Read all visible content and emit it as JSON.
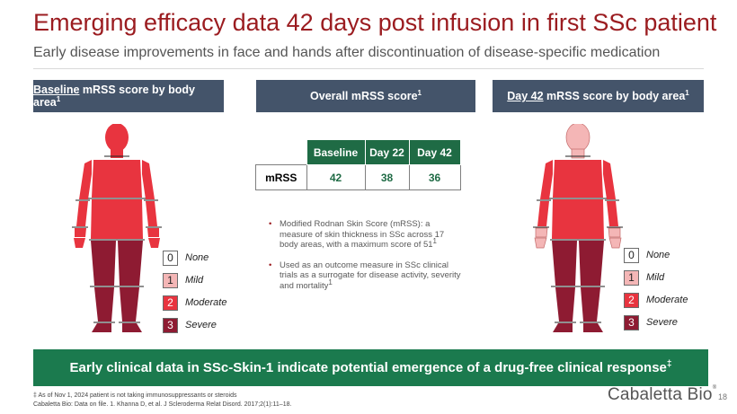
{
  "title": "Emerging efficacy data 42 days post infusion in first SSc patient",
  "subtitle": "Early disease improvements in face and hands after discontinuation of disease-specific medication",
  "headers": {
    "left_underlined": "Baseline",
    "left_rest": " mRSS score by body area",
    "left_sup": "1",
    "center": "Overall mRSS score",
    "center_sup": "1",
    "right_underlined": "Day 42",
    "right_rest": " mRSS score by body area",
    "right_sup": "1"
  },
  "legend": [
    {
      "num": "0",
      "label": "None",
      "color": "#ffffff"
    },
    {
      "num": "1",
      "label": "Mild",
      "color": "#f4b6b6"
    },
    {
      "num": "2",
      "label": "Moderate",
      "color": "#e8343f"
    },
    {
      "num": "3",
      "label": "Severe",
      "color": "#8e1b32"
    }
  ],
  "score_table": {
    "columns": [
      "Baseline",
      "Day 22",
      "Day 42"
    ],
    "row_label": "mRSS",
    "values": [
      "42",
      "38",
      "36"
    ]
  },
  "bullets": [
    {
      "text": "Modified Rodnan Skin Score (mRSS): a measure of skin thickness in SSc across 17 body areas, with a maximum score of 51",
      "sup": "1"
    },
    {
      "text": "Used as an outcome measure in SSc clinical trials as a surrogate for disease activity, severity and mortality",
      "sup": "1"
    }
  ],
  "banner": {
    "text": "Early clinical data in SSc-Skin-1 indicate potential emergence of a drug-free clinical response",
    "sup": "‡"
  },
  "footnotes": [
    "‡ As of Nov 1, 2024 patient is not taking immunosuppressants or steroids",
    "Cabaletta Bio: Data on file. 1. Khanna D, et al. J Scleroderma Relat Disord. 2017;2(1):11–18."
  ],
  "logo": {
    "text": "Cabaletta Bio",
    "reg": "®"
  },
  "page_number": "18",
  "colors": {
    "moderate": "#e8343f",
    "severe": "#8e1b32",
    "mild": "#f4b6b6",
    "header_bg": "#44546a",
    "banner_bg": "#1b7a4e",
    "title": "#9b1c20"
  },
  "body_maps": {
    "baseline": {
      "head": "moderate",
      "neck": "moderate",
      "chest": "moderate",
      "abdomen": "moderate",
      "upper_arms": "moderate",
      "forearms": "moderate",
      "hands": "moderate",
      "fingers": "moderate",
      "thighs": "severe",
      "legs": "severe",
      "feet": "severe"
    },
    "day42": {
      "head": "mild",
      "neck": "mild",
      "chest": "moderate",
      "abdomen": "moderate",
      "upper_arms": "moderate",
      "forearms": "moderate",
      "hands": "mild",
      "fingers": "mild",
      "thighs": "severe",
      "legs": "severe",
      "feet": "severe"
    }
  }
}
